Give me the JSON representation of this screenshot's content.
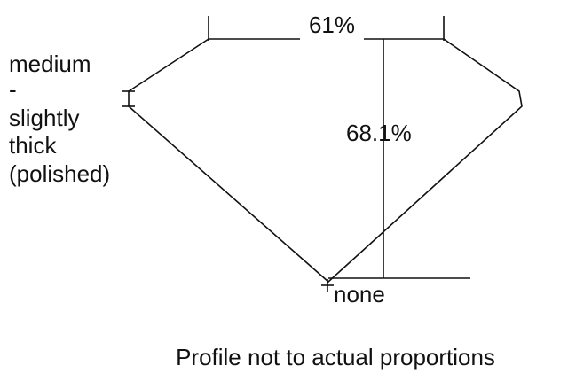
{
  "table_width": {
    "label": "61%"
  },
  "total_depth": {
    "label": "68.1%"
  },
  "girdle": {
    "lines": [
      "medium",
      "-",
      "slightly",
      "thick",
      "(polished)"
    ]
  },
  "culet": {
    "label": "none"
  },
  "caption": "Profile not to actual proportions"
}
